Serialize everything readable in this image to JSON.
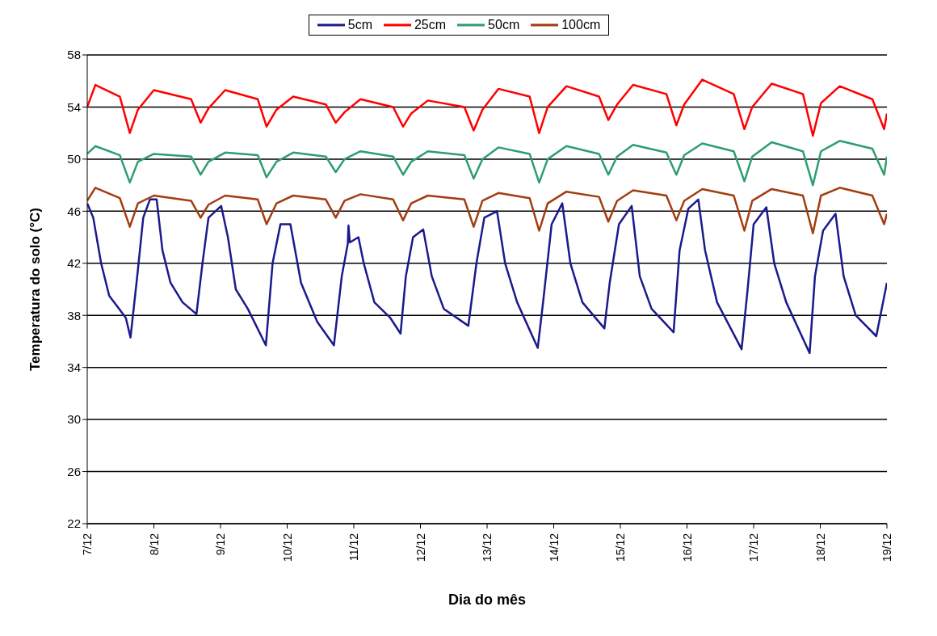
{
  "chart_data": {
    "type": "line",
    "xlabel": "Dia do mês",
    "ylabel": "Temperatura do solo (°C)",
    "xlim": [
      "--12-07",
      "--12-19"
    ],
    "xticks": [
      {
        "value": "--12-07",
        "label": "7/12"
      },
      {
        "value": "--12-08",
        "label": "8/12"
      },
      {
        "value": "--12-09",
        "label": "9/12"
      },
      {
        "value": "--12-10",
        "label": "10/12"
      },
      {
        "value": "--12-11",
        "label": "11/12"
      },
      {
        "value": "--12-12",
        "label": "12/12"
      },
      {
        "value": "--12-13",
        "label": "13/12"
      },
      {
        "value": "--12-14",
        "label": "14/12"
      },
      {
        "value": "--12-15",
        "label": "15/12"
      },
      {
        "value": "--12-16",
        "label": "16/12"
      },
      {
        "value": "--12-17",
        "label": "17/12"
      },
      {
        "value": "--12-18",
        "label": "18/12"
      },
      {
        "value": "--12-19",
        "label": "19/12"
      }
    ],
    "ylim": [
      22,
      58
    ],
    "yticks": [
      22,
      26,
      30,
      34,
      38,
      42,
      46,
      50,
      54,
      58
    ],
    "grid": "y",
    "legend": "top",
    "marker": "none",
    "line_style": "solid",
    "x": [
      "--12-07T00:00",
      "--12-07T02:55",
      "--12-07T11:45",
      "--12-07T15:20",
      "--12-07T18:15",
      "--12-08T00:00",
      "--12-08T13:25",
      "--12-08T16:50",
      "--12-08T19:40",
      "--12-09T01:40",
      "--12-09T13:25",
      "--12-09T16:35",
      "--12-09T20:10",
      "--12-10T02:10",
      "--12-10T13:55",
      "--12-10T17:30",
      "--12-10T20:40",
      "--12-11T02:25",
      "--12-11T14:10",
      "--12-11T17:45",
      "--12-11T20:40",
      "--12-12T02:40",
      "--12-12T15:50",
      "--12-12T19:10",
      "--12-12T22:20",
      "--12-13T04:05",
      "--12-13T15:20",
      "--12-13T18:45",
      "--12-13T21:50",
      "--12-14T04:35",
      "--12-14T16:20",
      "--12-14T19:40",
      "--12-14T22:50",
      "--12-15T04:35",
      "--12-15T16:35",
      "--12-15T20:10",
      "--12-15T23:00",
      "--12-16T05:30",
      "--12-16T16:50",
      "--12-16T20:40",
      "--12-16T23:30",
      "--12-17T06:30",
      "--12-17T17:45",
      "--12-17T21:20",
      "--12-18T00:15",
      "--12-18T07:00",
      "--12-18T18:45",
      "--12-18T23:00",
      "--12-19T00:00"
    ],
    "series": [
      {
        "name": "5cm",
        "color": "#1a1a8c",
        "x": [
          "--12-07T00:00",
          "--12-07T02:10",
          "--12-07T05:00",
          "--12-07T07:55",
          "--12-07T11:30",
          "--12-07T13:55",
          "--12-07T15:35",
          "--12-07T18:00",
          "--12-07T20:10",
          "--12-07T22:35",
          "--12-08T01:00",
          "--12-08T03:05",
          "--12-08T06:00",
          "--12-08T10:20",
          "--12-08T15:20",
          "--12-08T17:30",
          "--12-08T19:40",
          "--12-09T00:15",
          "--12-09T02:40",
          "--12-09T05:30",
          "--12-09T09:50",
          "--12-09T16:20",
          "--12-09T18:45",
          "--12-09T21:35",
          "--12-10T01:10",
          "--12-10T05:00",
          "--12-10T10:50",
          "--12-10T16:50",
          "--12-10T19:40",
          "--12-10T21:50",
          "--12-10T22:05",
          "--12-10T22:35",
          "--12-11T01:40",
          "--12-11T03:35",
          "--12-11T07:25",
          "--12-11T13:10",
          "--12-11T16:50",
          "--12-11T18:45",
          "--12-11T21:20",
          "--12-12T01:00",
          "--12-12T04:05",
          "--12-12T08:25",
          "--12-12T17:15",
          "--12-12T20:10",
          "--12-12T23:00",
          "--12-13T03:35",
          "--12-13T06:30",
          "--12-13T10:50",
          "--12-13T18:15",
          "--12-13T20:10",
          "--12-13T23:15",
          "--12-14T03:05",
          "--12-14T06:00",
          "--12-14T10:20",
          "--12-14T18:15",
          "--12-14T20:10",
          "--12-14T23:30",
          "--12-15T04:05",
          "--12-15T07:00",
          "--12-15T11:15",
          "--12-15T19:10",
          "--12-15T21:20",
          "--12-16T00:30",
          "--12-16T04:05",
          "--12-16T06:30",
          "--12-16T10:50",
          "--12-16T19:40",
          "--12-16T21:50",
          "--12-17T00:00",
          "--12-17T04:35",
          "--12-17T07:25",
          "--12-17T11:45",
          "--12-17T20:10",
          "--12-17T22:05",
          "--12-18T01:00",
          "--12-18T05:30",
          "--12-18T08:25",
          "--12-18T12:45",
          "--12-18T20:10",
          "--12-19T00:00"
        ],
        "values": [
          46.6,
          45.5,
          42,
          39.5,
          38.5,
          37.8,
          36.3,
          41,
          45.5,
          46.9,
          46.9,
          43,
          40.5,
          39,
          38.1,
          42,
          45.5,
          46.4,
          44,
          40,
          38.5,
          35.7,
          42,
          45,
          45,
          40.5,
          37.5,
          35.7,
          41,
          43.5,
          44.9,
          43.6,
          44,
          42,
          39,
          37.8,
          36.6,
          41,
          44,
          44.6,
          41,
          38.5,
          37.2,
          42,
          45.5,
          46,
          42,
          39,
          35.5,
          39,
          45,
          46.6,
          42,
          39,
          37,
          40.5,
          45,
          46.4,
          41,
          38.5,
          36.7,
          43,
          46.2,
          46.9,
          43,
          39,
          35.4,
          40,
          45,
          46.3,
          42,
          39,
          35.1,
          41,
          44.5,
          45.8,
          41,
          38,
          36.4,
          40.5
        ]
      },
      {
        "name": "25cm",
        "color": "#ff0000",
        "values": [
          54.0,
          55.7,
          54.8,
          52.0,
          53.8,
          55.3,
          54.6,
          52.8,
          53.9,
          55.3,
          54.6,
          52.5,
          53.8,
          54.8,
          54.2,
          52.8,
          53.6,
          54.6,
          54.0,
          52.5,
          53.5,
          54.5,
          54.0,
          52.2,
          53.8,
          55.4,
          54.8,
          52.0,
          54.0,
          55.6,
          54.8,
          53.0,
          54.2,
          55.7,
          55.0,
          52.6,
          54.2,
          56.1,
          55.0,
          52.3,
          54.0,
          55.8,
          55.0,
          51.8,
          54.3,
          55.6,
          54.6,
          52.3,
          53.5
        ]
      },
      {
        "name": "50cm",
        "color": "#2e9e6e",
        "values": [
          50.4,
          51.0,
          50.3,
          48.2,
          49.8,
          50.4,
          50.2,
          48.8,
          49.8,
          50.5,
          50.3,
          48.6,
          49.8,
          50.5,
          50.2,
          49.0,
          50.0,
          50.6,
          50.2,
          48.8,
          49.8,
          50.6,
          50.3,
          48.5,
          50.0,
          50.9,
          50.4,
          48.2,
          50.0,
          51.0,
          50.4,
          48.8,
          50.2,
          51.1,
          50.5,
          48.8,
          50.3,
          51.2,
          50.6,
          48.3,
          50.2,
          51.3,
          50.6,
          48.0,
          50.6,
          51.4,
          50.8,
          48.8,
          50.2
        ]
      },
      {
        "name": "100cm",
        "color": "#a33c10",
        "values": [
          46.8,
          47.8,
          47.0,
          44.8,
          46.6,
          47.2,
          46.8,
          45.5,
          46.5,
          47.2,
          46.9,
          45.0,
          46.6,
          47.2,
          46.9,
          45.5,
          46.8,
          47.3,
          46.9,
          45.3,
          46.6,
          47.2,
          46.9,
          44.8,
          46.8,
          47.4,
          47.0,
          44.5,
          46.6,
          47.5,
          47.1,
          45.2,
          46.8,
          47.6,
          47.2,
          45.3,
          46.8,
          47.7,
          47.2,
          44.5,
          46.8,
          47.7,
          47.2,
          44.3,
          47.2,
          47.8,
          47.2,
          45.0,
          45.8
        ]
      }
    ]
  }
}
